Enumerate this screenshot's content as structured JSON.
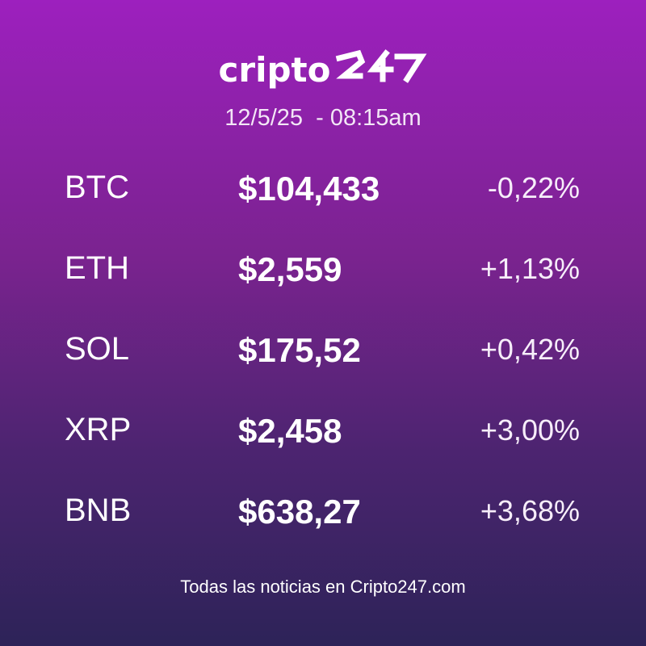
{
  "brand": {
    "text": "cripto",
    "mark_text": "247"
  },
  "datetime": "12/5/25  - 08:15am",
  "rows": [
    {
      "ticker": "BTC",
      "price": "$104,433",
      "change": "-0,22%"
    },
    {
      "ticker": "ETH",
      "price": "$2,559",
      "change": "+1,13%"
    },
    {
      "ticker": "SOL",
      "price": "$175,52",
      "change": "+0,42%"
    },
    {
      "ticker": "XRP",
      "price": "$2,458",
      "change": "+3,00%"
    },
    {
      "ticker": "BNB",
      "price": "$638,27",
      "change": "+3,68%"
    }
  ],
  "footer": "Todas las noticias en Cripto247.com",
  "colors": {
    "gradient_top": "#9d20be",
    "gradient_bottom": "#2d2358",
    "text": "#ffffff"
  }
}
